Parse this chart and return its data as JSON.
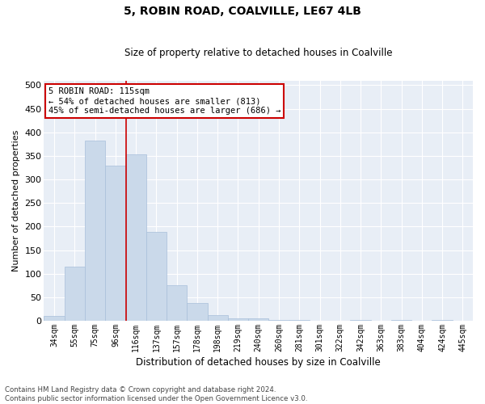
{
  "title1": "5, ROBIN ROAD, COALVILLE, LE67 4LB",
  "title2": "Size of property relative to detached houses in Coalville",
  "xlabel": "Distribution of detached houses by size in Coalville",
  "ylabel": "Number of detached properties",
  "bar_labels": [
    "34sqm",
    "55sqm",
    "75sqm",
    "96sqm",
    "116sqm",
    "137sqm",
    "157sqm",
    "178sqm",
    "198sqm",
    "219sqm",
    "240sqm",
    "260sqm",
    "281sqm",
    "301sqm",
    "322sqm",
    "342sqm",
    "363sqm",
    "383sqm",
    "404sqm",
    "424sqm",
    "445sqm"
  ],
  "bar_values": [
    10,
    115,
    383,
    330,
    353,
    188,
    76,
    38,
    12,
    6,
    5,
    1,
    1,
    0,
    0,
    1,
    0,
    1,
    0,
    2,
    0
  ],
  "bar_color": "#cad9ea",
  "bar_edgecolor": "#a8bfda",
  "vline_x_index": 3.5,
  "vline_color": "#cc0000",
  "annotation_title": "5 ROBIN ROAD: 115sqm",
  "annotation_line1": "← 54% of detached houses are smaller (813)",
  "annotation_line2": "45% of semi-detached houses are larger (686) →",
  "annotation_box_color": "#ffffff",
  "annotation_box_edgecolor": "#cc0000",
  "ylim": [
    0,
    510
  ],
  "yticks": [
    0,
    50,
    100,
    150,
    200,
    250,
    300,
    350,
    400,
    450,
    500
  ],
  "background_color": "#e8eef6",
  "footer_line1": "Contains HM Land Registry data © Crown copyright and database right 2024.",
  "footer_line2": "Contains public sector information licensed under the Open Government Licence v3.0."
}
